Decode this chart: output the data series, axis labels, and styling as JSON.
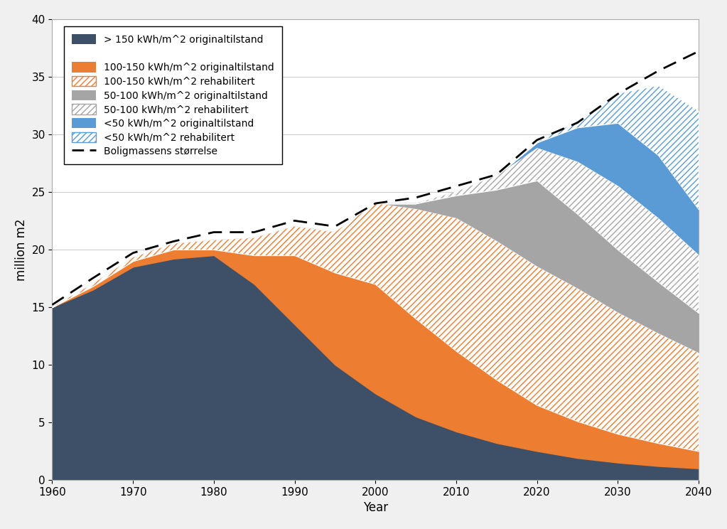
{
  "years": [
    1960,
    1965,
    1970,
    1975,
    1980,
    1985,
    1990,
    1995,
    2000,
    2005,
    2010,
    2015,
    2020,
    2025,
    2030,
    2035,
    2040
  ],
  "dark_blue_orig": [
    15.0,
    16.5,
    18.5,
    19.2,
    19.5,
    17.0,
    13.5,
    10.0,
    7.5,
    5.5,
    4.2,
    3.2,
    2.5,
    1.9,
    1.5,
    1.2,
    1.0
  ],
  "orange_orig": [
    0.0,
    0.3,
    0.5,
    0.8,
    0.5,
    2.5,
    6.0,
    8.0,
    9.5,
    8.5,
    7.0,
    5.5,
    4.0,
    3.2,
    2.5,
    2.0,
    1.5
  ],
  "orange_rehab": [
    0.0,
    0.2,
    0.3,
    0.5,
    0.8,
    1.5,
    2.5,
    3.5,
    7.0,
    9.5,
    11.5,
    12.0,
    12.0,
    11.5,
    10.5,
    9.5,
    8.5
  ],
  "gray_orig": [
    0.0,
    0.0,
    0.0,
    0.0,
    0.0,
    0.0,
    0.0,
    0.0,
    0.0,
    0.5,
    2.0,
    4.5,
    7.5,
    6.5,
    5.5,
    4.5,
    3.5
  ],
  "gray_rehab": [
    0.0,
    0.0,
    0.0,
    0.0,
    0.0,
    0.0,
    0.0,
    0.0,
    0.0,
    0.0,
    0.3,
    1.2,
    2.8,
    4.5,
    5.5,
    5.5,
    5.0
  ],
  "light_blue_orig": [
    0.0,
    0.0,
    0.0,
    0.0,
    0.0,
    0.0,
    0.0,
    0.0,
    0.0,
    0.0,
    0.0,
    0.0,
    0.5,
    3.0,
    5.5,
    5.5,
    4.0
  ],
  "light_blue_rehab": [
    0.0,
    0.0,
    0.0,
    0.0,
    0.0,
    0.0,
    0.0,
    0.0,
    0.0,
    0.0,
    0.0,
    0.0,
    0.0,
    0.5,
    2.5,
    6.0,
    8.5
  ],
  "boligmassens": [
    15.2,
    17.5,
    19.7,
    20.7,
    21.5,
    21.5,
    22.5,
    22.0,
    24.0,
    24.5,
    25.5,
    26.5,
    29.5,
    31.0,
    33.5,
    35.5,
    37.2
  ],
  "colors": {
    "dark_blue": "#3d5068",
    "orange": "#ed7d31",
    "gray": "#a5a5a5",
    "light_blue": "#5b9bd5",
    "hatch_orange": "#ed7d31",
    "hatch_gray": "#a5a5a5",
    "hatch_blue": "#5b9bd5"
  },
  "xlabel": "Year",
  "ylabel": "million m2",
  "ylim": [
    0,
    40
  ],
  "xlim": [
    1960,
    2040
  ],
  "background_color": "#f0f0f0",
  "plot_background": "#ffffff",
  "legend_labels": [
    "> 150 kWh/m^2 originaltilstand",
    "",
    "100-150 kWh/m^2 originaltilstand",
    "100-150 kWh/m^2 rehabilitert",
    "50-100 kWh/m^2 originaltilstand",
    "50-100 kWh/m^2 rehabilitert",
    "<50 kWh/m^2 originaltilstand",
    "<50 kWh/m^2 rehabilitert",
    "Boligmassens størrelse"
  ]
}
